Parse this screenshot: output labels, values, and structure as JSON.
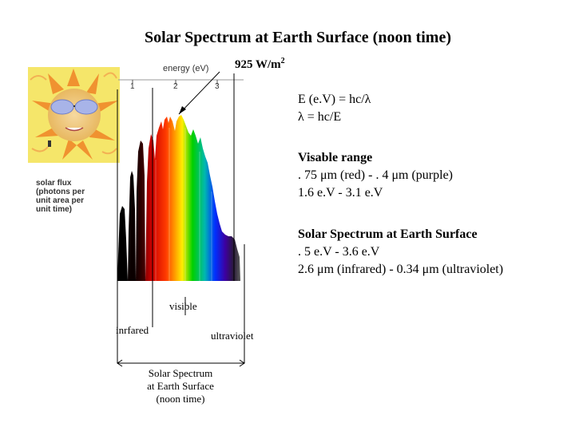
{
  "title": "Solar Spectrum at Earth Surface (noon time)",
  "flux_label": "925 W/m",
  "flux_sup": "2",
  "chart": {
    "energy_axis_label": "energy (eV)",
    "energy_ticks": [
      "1",
      "2",
      "3"
    ],
    "y_label_lines": [
      "solar flux",
      "(photons per",
      "unit area per",
      "unit time)"
    ]
  },
  "formula": {
    "line1": "E (e.V) = hc/λ",
    "line2": "λ = hc/E"
  },
  "visible_range": {
    "heading": "Visable range",
    "line1": ". 75 μm (red) - . 4 μm (purple)",
    "line2": "1.6 e.V - 3.1 e.V"
  },
  "surface": {
    "heading": "Solar Spectrum at Earth Surface",
    "line1": ". 5 e.V - 3.6 e.V",
    "line2": "2.6 μm (infrared) - 0.34 μm (ultraviolet)"
  },
  "annotations": {
    "visible": "visible",
    "infrared": "inrfared",
    "ultraviolet": "ultraviolet"
  },
  "bottom_label": [
    "Solar Spectrum",
    "at Earth Surface",
    "(noon time)"
  ],
  "colors": {
    "sun_bg": "#f5e66a",
    "sun_face": "#f2d58c",
    "glasses": "#a8b4e8"
  },
  "icons": {
    "sun": "sun-with-sunglasses-icon"
  }
}
